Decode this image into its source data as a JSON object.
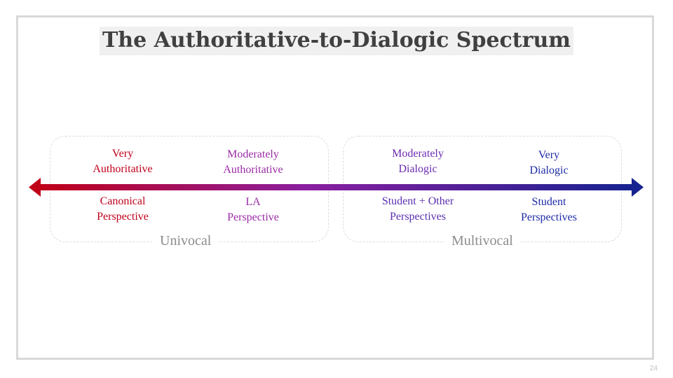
{
  "title": "The Authoritative-to-Dialogic Spectrum",
  "spectrum": {
    "colors": {
      "start": "#c00018",
      "middle": "#8a1fa0",
      "end": "#16228f"
    },
    "top_labels": [
      {
        "line1": "Very",
        "line2": "Authoritative",
        "color": "#c0001b"
      },
      {
        "line1": "Moderately",
        "line2": "Authoritative",
        "color": "#9a2aa6"
      },
      {
        "line1": "Moderately",
        "line2": "Dialogic",
        "color": "#6b2ab0"
      },
      {
        "line1": "Very",
        "line2": "Dialogic",
        "color": "#1c2aa6"
      }
    ],
    "bottom_labels": [
      {
        "line1": "Canonical",
        "line2": "Perspective",
        "color": "#c0001b"
      },
      {
        "line1": "LA",
        "line2": "Perspective",
        "color": "#9a2aa6"
      },
      {
        "line1": "Student + Other",
        "line2": "Perspectives",
        "color": "#5a2fb0"
      },
      {
        "line1": "Student",
        "line2": "Perspectives",
        "color": "#1c2aa6"
      }
    ],
    "groups": [
      "Univocal",
      "Multivocal"
    ]
  },
  "page_number": "24"
}
